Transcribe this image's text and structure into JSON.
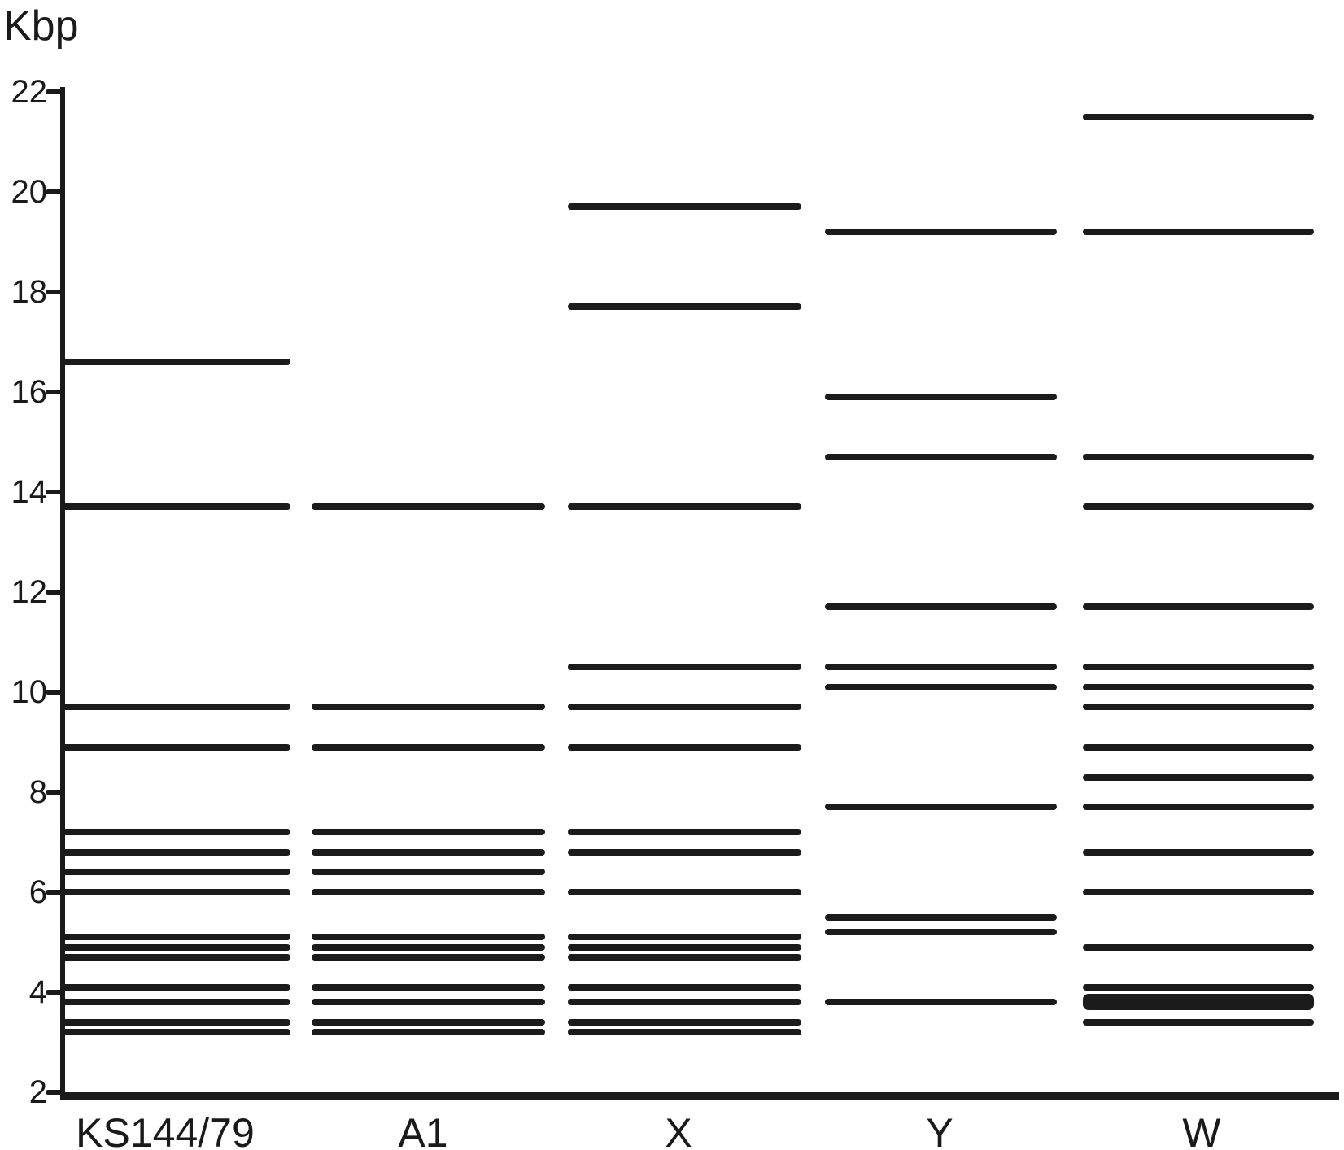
{
  "chart_data": {
    "type": "scatter",
    "subtype": "dna-restriction-fragment-band-pattern",
    "title": "",
    "ylabel": "Kbp",
    "xlabel": "",
    "ylim": [
      2,
      22
    ],
    "yticks": [
      22,
      20,
      18,
      16,
      14,
      12,
      10,
      8,
      6,
      4,
      2
    ],
    "grid": false,
    "legend": "none",
    "categories": [
      "KS144/79",
      "A1",
      "X",
      "Y",
      "W"
    ],
    "series": [
      {
        "name": "KS144/79",
        "bands_kbp": [
          16.6,
          13.7,
          9.7,
          8.9,
          7.2,
          6.8,
          6.4,
          6.0,
          5.1,
          4.9,
          4.7,
          4.1,
          3.8,
          3.4,
          3.2
        ],
        "thick_bands_kbp": []
      },
      {
        "name": "A1",
        "bands_kbp": [
          13.7,
          9.7,
          8.9,
          7.2,
          6.8,
          6.4,
          6.0,
          5.1,
          4.9,
          4.7,
          4.1,
          3.8,
          3.4,
          3.2
        ],
        "thick_bands_kbp": []
      },
      {
        "name": "X",
        "bands_kbp": [
          19.7,
          17.7,
          13.7,
          10.5,
          9.7,
          8.9,
          7.2,
          6.8,
          6.0,
          5.1,
          4.9,
          4.7,
          4.1,
          3.8,
          3.4,
          3.2
        ],
        "thick_bands_kbp": []
      },
      {
        "name": "Y",
        "bands_kbp": [
          19.2,
          15.9,
          14.7,
          11.7,
          10.5,
          10.1,
          7.7,
          5.5,
          5.2,
          3.8
        ],
        "thick_bands_kbp": []
      },
      {
        "name": "W",
        "bands_kbp": [
          21.5,
          19.2,
          14.7,
          13.7,
          11.7,
          10.5,
          10.1,
          9.7,
          8.9,
          8.3,
          7.7,
          6.8,
          6.0,
          4.9,
          4.1,
          3.8,
          3.4
        ],
        "thick_bands_kbp": [
          3.8
        ]
      }
    ],
    "band_color": "#1b1b1b",
    "axis_color": "#1a1a1a",
    "background_color": "#ffffff"
  }
}
